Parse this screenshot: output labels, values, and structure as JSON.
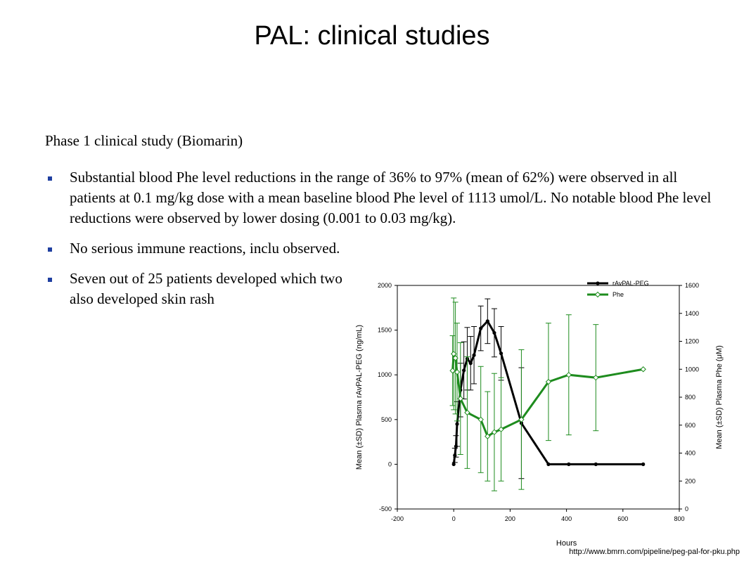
{
  "slide": {
    "title": "PAL: clinical studies",
    "subtitle": "Phase 1 clinical study (Biomarin)",
    "bullets": [
      "Substantial blood Phe level reductions in the range of 36% to 97% (mean of 62%) were observed in all patients at 0.1 mg/kg dose with a mean baseline blood Phe level of 1113 umol/L. No notable blood Phe level reductions were observed by lower dosing (0.001 to 0.03 mg/kg).",
      "No serious immune reactions, inclu observed.",
      "Seven out of 25 patients developed which two also developed skin rash"
    ],
    "source_url": "http://www.bmrn.com/pipeline/peg-pal-for-pku.php"
  },
  "chart_data": {
    "type": "line",
    "xlabel": "Hours",
    "ylabel_left": "Mean (±SD) Plasma rAvPAL-PEG (ng/mL)",
    "ylabel_right": "Mean (±SD) Plasma Phe (μM)",
    "xlim": [
      -200,
      800
    ],
    "ylim_left": [
      -500,
      2000
    ],
    "ylim_right": [
      0,
      1600
    ],
    "x_ticks": [
      "-200",
      "0",
      "200",
      "400",
      "600",
      "800"
    ],
    "y_left_ticks": [
      "-500",
      "0",
      "500",
      "1000",
      "1500",
      "2000"
    ],
    "y_right_ticks": [
      "0",
      "200",
      "400",
      "600",
      "800",
      "1000",
      "1200",
      "1400",
      "1600"
    ],
    "legend_position": "top-right",
    "colors": {
      "rAvPAL-PEG": "#000000",
      "Phe": "#1e8c1e"
    },
    "series": [
      {
        "name": "rAvPAL-PEG",
        "axis": "left",
        "x": [
          0,
          4,
          8,
          12,
          24,
          36,
          48,
          60,
          72,
          96,
          120,
          144,
          168,
          240,
          336,
          408,
          504,
          672
        ],
        "y": [
          0,
          100,
          200,
          450,
          830,
          1050,
          1180,
          1130,
          1220,
          1520,
          1600,
          1470,
          1240,
          460,
          0,
          0,
          0,
          0
        ],
        "err": [
          0,
          80,
          120,
          250,
          300,
          320,
          350,
          300,
          320,
          250,
          250,
          270,
          300,
          620,
          0,
          0,
          0,
          0
        ]
      },
      {
        "name": "Phe",
        "axis": "right",
        "x": [
          -4,
          0,
          6,
          12,
          24,
          48,
          96,
          120,
          144,
          168,
          240,
          336,
          408,
          504,
          672
        ],
        "y": [
          990,
          1110,
          1080,
          980,
          790,
          690,
          640,
          520,
          550,
          570,
          640,
          910,
          960,
          940,
          1000
        ],
        "err": [
          250,
          400,
          400,
          350,
          400,
          400,
          380,
          320,
          420,
          370,
          500,
          420,
          430,
          380,
          0
        ]
      }
    ]
  }
}
